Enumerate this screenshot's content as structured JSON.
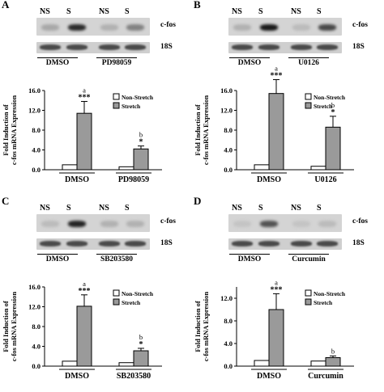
{
  "panels": [
    {
      "label": "A",
      "lanes": [
        "NS",
        "S",
        "NS",
        "S"
      ],
      "band_labels": [
        "c-fos",
        "18S"
      ],
      "groups": [
        "DMSO",
        "PD98059"
      ],
      "fos_intensity": [
        0.25,
        0.9,
        0.2,
        0.45
      ],
      "chart_data": {
        "type": "bar",
        "ylabel": "Fold Induction of c-fos mRNA Expression",
        "categories": [
          "DMSO",
          "PD98059"
        ],
        "yticks": [
          "0.0",
          "4.0",
          "8.0",
          "12.0",
          "16.0"
        ],
        "ylim": [
          0,
          16
        ],
        "series": [
          {
            "name": "Non-Stretch",
            "color": "#ffffff",
            "values": [
              1.0,
              0.6
            ],
            "errors": [
              0,
              0
            ]
          },
          {
            "name": "Stretch",
            "color": "#9a9a9a",
            "values": [
              11.4,
              4.2
            ],
            "errors": [
              2.4,
              0.6
            ]
          }
        ],
        "annotations": [
          [
            "a",
            "***"
          ],
          [
            "b",
            "*"
          ]
        ],
        "legend": "top-right"
      }
    },
    {
      "label": "B",
      "lanes": [
        "NS",
        "S",
        "NS",
        "S"
      ],
      "band_labels": [
        "c-fos",
        "18S"
      ],
      "groups": [
        "DMSO",
        "U0126"
      ],
      "fos_intensity": [
        0.2,
        1.0,
        0.15,
        0.75
      ],
      "chart_data": {
        "type": "bar",
        "ylabel": "Fold Induction of c-fos mRNA Expression",
        "categories": [
          "DMSO",
          "U0126"
        ],
        "yticks": [
          "0.0",
          "4.0",
          "8.0",
          "12.0",
          "16.0"
        ],
        "ylim": [
          0,
          16
        ],
        "series": [
          {
            "name": "Non-Stretch",
            "color": "#ffffff",
            "values": [
              1.0,
              0.7
            ],
            "errors": [
              0,
              0
            ]
          },
          {
            "name": "Stretch",
            "color": "#9a9a9a",
            "values": [
              15.4,
              8.6
            ],
            "errors": [
              2.8,
              2.2
            ]
          }
        ],
        "annotations": [
          [
            "a",
            "***"
          ],
          [
            "b",
            "*"
          ]
        ],
        "legend": "top-right"
      }
    },
    {
      "label": "C",
      "lanes": [
        "NS",
        "S",
        "NS",
        "S"
      ],
      "band_labels": [
        "c-fos",
        "18S"
      ],
      "groups": [
        "DMSO",
        "SB203580"
      ],
      "fos_intensity": [
        0.15,
        0.95,
        0.2,
        0.2
      ],
      "chart_data": {
        "type": "bar",
        "ylabel": "Fold Induction of c-fos mRNA Expression",
        "categories": [
          "DMSO",
          "SB203580"
        ],
        "yticks": [
          "0.0",
          "4.0",
          "8.0",
          "12.0",
          "16.0"
        ],
        "ylim": [
          0,
          16
        ],
        "series": [
          {
            "name": "Non-Stretch",
            "color": "#ffffff",
            "values": [
              1.0,
              0.7
            ],
            "errors": [
              0,
              0
            ]
          },
          {
            "name": "Stretch",
            "color": "#9a9a9a",
            "values": [
              12.1,
              3.1
            ],
            "errors": [
              2.3,
              0.5
            ]
          }
        ],
        "annotations": [
          [
            "a",
            "***"
          ],
          [
            "b",
            "*"
          ]
        ],
        "legend": "top-right"
      }
    },
    {
      "label": "D",
      "lanes": [
        "NS",
        "S",
        "NS",
        "S"
      ],
      "band_labels": [
        "c-fos",
        "18S"
      ],
      "groups": [
        "DMSO",
        "Curcumin"
      ],
      "fos_intensity": [
        0.1,
        0.7,
        0.1,
        0.15
      ],
      "chart_data": {
        "type": "bar",
        "ylabel": "Fold Induction of c-fos mRNA Expression",
        "categories": [
          "DMSO",
          "Curcumin"
        ],
        "yticks": [
          "0.0",
          "4.0",
          "8.0",
          "12.0"
        ],
        "ylim": [
          0,
          14
        ],
        "series": [
          {
            "name": "Non-Stretch",
            "color": "#ffffff",
            "values": [
              1.0,
              0.9
            ],
            "errors": [
              0,
              0
            ]
          },
          {
            "name": "Stretch",
            "color": "#9a9a9a",
            "values": [
              10.0,
              1.5
            ],
            "errors": [
              2.8,
              0.3
            ]
          }
        ],
        "annotations": [
          [
            "a",
            "***"
          ],
          [
            "b",
            ""
          ]
        ],
        "legend": "top-right"
      }
    }
  ]
}
